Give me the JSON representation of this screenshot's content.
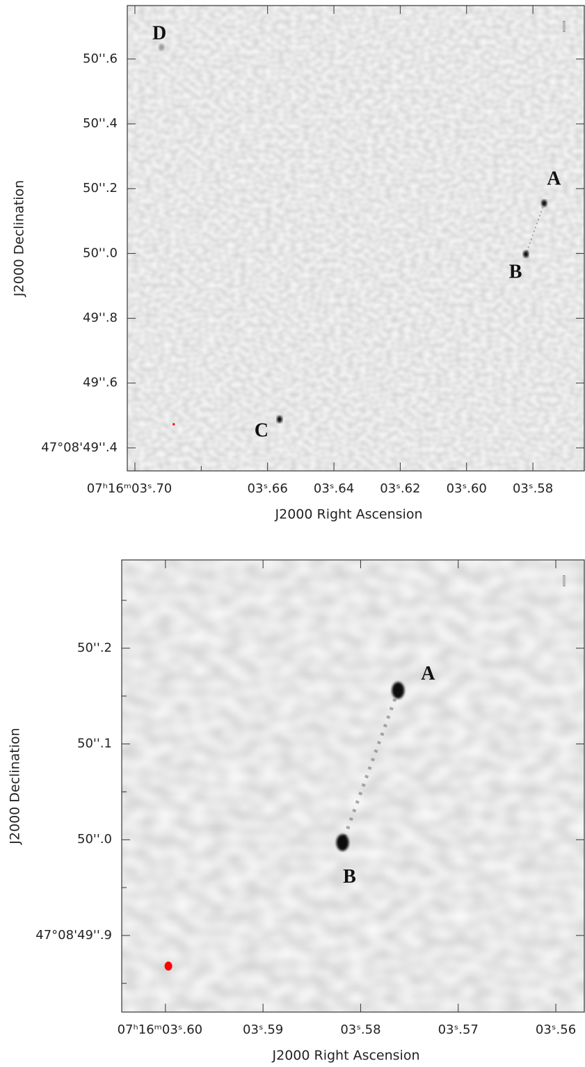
{
  "chart_data": [
    {
      "type": "image",
      "xlabel": "J2000 Right Ascension",
      "ylabel": "J2000 Declination",
      "annotation": "I",
      "xlim": [
        3.7023,
        3.5645
      ],
      "ylim": [
        49.329,
        50.765
      ],
      "xticks": [
        {
          "value": 3.7,
          "label": "07ʰ16ᵐ03ˢ.70"
        },
        {
          "value": 3.66,
          "label": "03ˢ.66"
        },
        {
          "value": 3.64,
          "label": "03ˢ.64"
        },
        {
          "value": 3.62,
          "label": "03ˢ.62"
        },
        {
          "value": 3.6,
          "label": "03ˢ.60"
        },
        {
          "value": 3.58,
          "label": "03ˢ.58"
        }
      ],
      "xminorticks": [
        3.68
      ],
      "yticks": [
        {
          "value": 49.4,
          "label": "47°08'49''.4"
        },
        {
          "value": 49.6,
          "label": "49''.6"
        },
        {
          "value": 49.8,
          "label": "49''.8"
        },
        {
          "value": 50.0,
          "label": "50''.0"
        },
        {
          "value": 50.2,
          "label": "50''.2"
        },
        {
          "value": 50.4,
          "label": "50''.4"
        },
        {
          "value": 50.6,
          "label": "50''.6"
        }
      ],
      "yminorticks": [],
      "sources": [
        {
          "name": "A",
          "x": 3.5766,
          "y": 50.155
        },
        {
          "name": "B",
          "x": 3.5821,
          "y": 49.998
        },
        {
          "name": "C",
          "x": 3.6564,
          "y": 49.488
        },
        {
          "name": "D",
          "x": 3.692,
          "y": 50.636
        }
      ],
      "beam": {
        "x": 3.6883,
        "y": 49.473,
        "color": "#ff0000"
      }
    },
    {
      "type": "image",
      "xlabel": "J2000 Right Ascension",
      "ylabel": "J2000 Declination",
      "annotation": "I",
      "xlim": [
        3.60448,
        3.55708
      ],
      "ylim": [
        49.82,
        50.2922
      ],
      "xticks": [
        {
          "value": 3.6,
          "label": "07ʰ16ᵐ03ˢ.60"
        },
        {
          "value": 3.59,
          "label": "03ˢ.59"
        },
        {
          "value": 3.58,
          "label": "03ˢ.58"
        },
        {
          "value": 3.57,
          "label": "03ˢ.57"
        },
        {
          "value": 3.56,
          "label": "03ˢ.56"
        }
      ],
      "xminorticks": [],
      "yticks": [
        {
          "value": 49.9,
          "label": "47°08'49''.9"
        },
        {
          "value": 50.0,
          "label": "50''.0"
        },
        {
          "value": 50.1,
          "label": "50''.1"
        },
        {
          "value": 50.2,
          "label": "50''.2"
        }
      ],
      "yminorticks": [
        49.85,
        49.95,
        50.05,
        50.15,
        50.25
      ],
      "sources": [
        {
          "name": "A",
          "x": 3.57616,
          "y": 50.156
        },
        {
          "name": "B",
          "x": 3.58185,
          "y": 49.997
        }
      ],
      "beam": {
        "x": 3.5997,
        "y": 49.868,
        "color": "#ff0000"
      }
    }
  ]
}
